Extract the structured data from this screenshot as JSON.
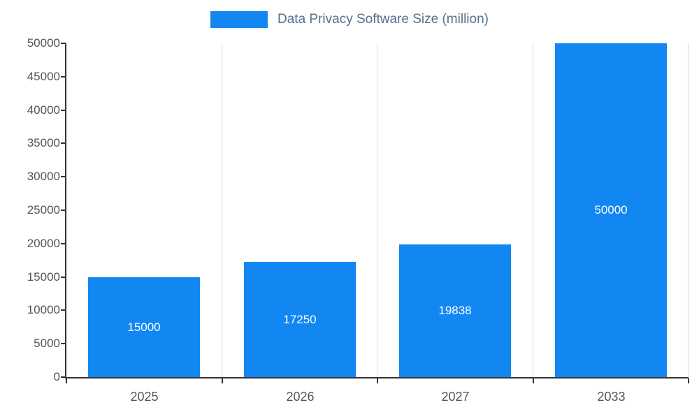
{
  "chart_data": {
    "type": "bar",
    "title": "Data Privacy Software Size (million)",
    "categories": [
      "2025",
      "2026",
      "2027",
      "2033"
    ],
    "values": [
      15000,
      17250,
      19838,
      50000
    ],
    "value_labels": [
      "15000",
      "17250",
      "19838",
      "50000"
    ],
    "xlabel": "",
    "ylabel": "",
    "ylim": [
      0,
      50000
    ],
    "ytick_step": 5000,
    "yticks": [
      "0",
      "5000",
      "10000",
      "15000",
      "20000",
      "25000",
      "30000",
      "35000",
      "40000",
      "45000",
      "50000"
    ],
    "grid": "vertical",
    "legend_position": "top",
    "bar_color": "#1287f2",
    "axis_color": "#333333",
    "grid_color": "#dddddd",
    "tick_label_color": "#555555",
    "title_color": "#54718c",
    "value_label_color": "#ffffff"
  }
}
